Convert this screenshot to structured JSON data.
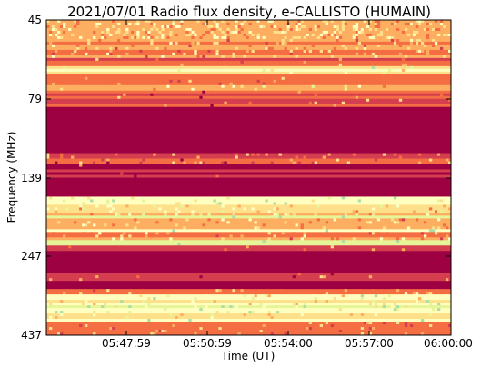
{
  "chart_data": {
    "type": "heatmap",
    "title": "2021/07/01  Radio flux density, e-CALLISTO (HUMAIN)",
    "xlabel": "Time (UT)",
    "ylabel": "Frequency (MHz)",
    "x_ticks": [
      "05:47:59",
      "05:50:59",
      "05:54:00",
      "05:57:00",
      "06:00:00"
    ],
    "y_ticks": [
      "45",
      "79",
      "139",
      "247",
      "437"
    ],
    "colormap": [
      "#9e0142",
      "#d53e4f",
      "#f46d43",
      "#fdae61",
      "#fee08b",
      "#ffffbf",
      "#e6f598",
      "#abdda4"
    ],
    "frequency_bands": [
      {
        "from": 0.0,
        "to": 0.06,
        "level": 0.42,
        "spots": 0.6
      },
      {
        "from": 0.06,
        "to": 0.12,
        "level": 0.35,
        "spots": 0.25
      },
      {
        "from": 0.12,
        "to": 0.15,
        "level": 0.22,
        "spots": 0.05
      },
      {
        "from": 0.15,
        "to": 0.175,
        "level": 0.62,
        "spots": 0.1
      },
      {
        "from": 0.175,
        "to": 0.205,
        "level": 0.25,
        "spots": 0.05
      },
      {
        "from": 0.205,
        "to": 0.225,
        "level": 0.48,
        "spots": 0.1
      },
      {
        "from": 0.225,
        "to": 0.28,
        "level": 0.22,
        "spots": 0.05
      },
      {
        "from": 0.28,
        "to": 0.42,
        "level": 0.0,
        "spots": 0.0
      },
      {
        "from": 0.42,
        "to": 0.46,
        "level": 0.22,
        "spots": 0.2
      },
      {
        "from": 0.46,
        "to": 0.5,
        "level": 0.05,
        "spots": 0.02
      },
      {
        "from": 0.5,
        "to": 0.56,
        "level": 0.0,
        "spots": 0.0
      },
      {
        "from": 0.56,
        "to": 0.585,
        "level": 0.72,
        "spots": 0.15
      },
      {
        "from": 0.585,
        "to": 0.62,
        "level": 0.5,
        "spots": 0.3
      },
      {
        "from": 0.62,
        "to": 0.63,
        "level": 0.82,
        "spots": 0.1
      },
      {
        "from": 0.63,
        "to": 0.66,
        "level": 0.4,
        "spots": 0.2
      },
      {
        "from": 0.66,
        "to": 0.675,
        "level": 0.75,
        "spots": 0.1
      },
      {
        "from": 0.675,
        "to": 0.7,
        "level": 0.35,
        "spots": 0.2
      },
      {
        "from": 0.7,
        "to": 0.715,
        "level": 0.8,
        "spots": 0.05
      },
      {
        "from": 0.715,
        "to": 0.73,
        "level": 0.2,
        "spots": 0.05
      },
      {
        "from": 0.73,
        "to": 0.8,
        "level": 0.0,
        "spots": 0.0
      },
      {
        "from": 0.8,
        "to": 0.83,
        "level": 0.15,
        "spots": 0.05
      },
      {
        "from": 0.83,
        "to": 0.85,
        "level": 0.0,
        "spots": 0.0
      },
      {
        "from": 0.85,
        "to": 0.87,
        "level": 0.35,
        "spots": 0.15
      },
      {
        "from": 0.87,
        "to": 0.905,
        "level": 0.62,
        "spots": 0.2
      },
      {
        "from": 0.905,
        "to": 0.93,
        "level": 0.78,
        "spots": 0.25
      },
      {
        "from": 0.93,
        "to": 0.945,
        "level": 0.55,
        "spots": 0.1
      },
      {
        "from": 0.945,
        "to": 0.96,
        "level": 0.8,
        "spots": 0.1
      },
      {
        "from": 0.96,
        "to": 1.0,
        "level": 0.28,
        "spots": 0.1
      }
    ]
  }
}
